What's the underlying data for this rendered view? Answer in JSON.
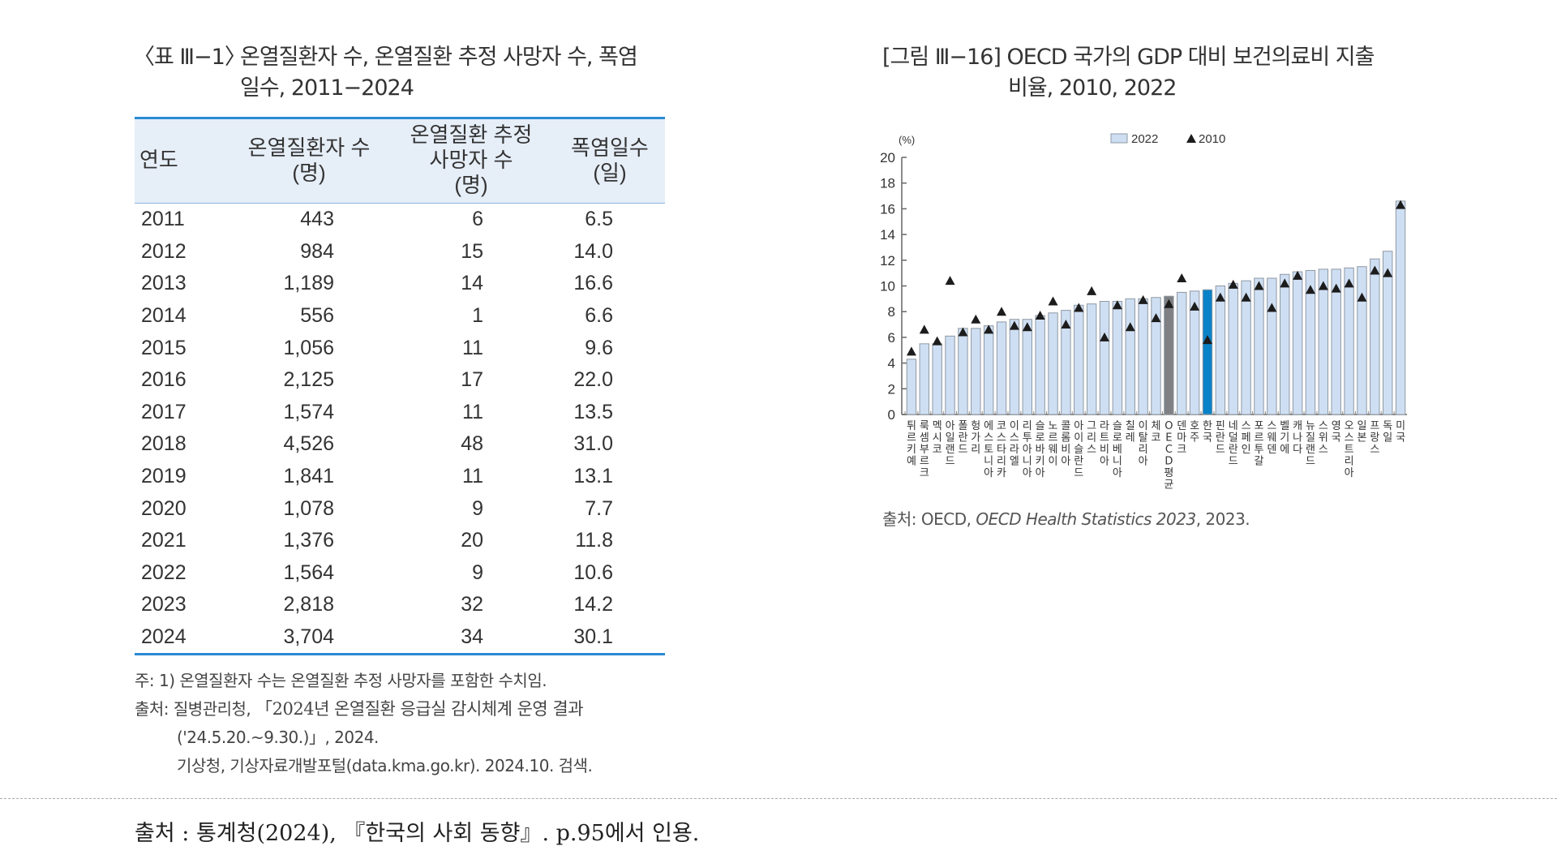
{
  "table": {
    "caption_number": "〈표 Ⅲ−1〉",
    "caption_line1": "온열질환자 수, 온열질환 추정 사망자 수, 폭염",
    "caption_line2": "일수, 2011−2024",
    "headers": [
      [
        "연도"
      ],
      [
        "온열질환자 수",
        "(명)"
      ],
      [
        "온열질환 추정",
        "사망자 수",
        "(명)"
      ],
      [
        "폭염일수",
        "(일)"
      ]
    ],
    "rows": [
      [
        "2011",
        "443",
        "6",
        "6.5"
      ],
      [
        "2012",
        "984",
        "15",
        "14.0"
      ],
      [
        "2013",
        "1,189",
        "14",
        "16.6"
      ],
      [
        "2014",
        "556",
        "1",
        "6.6"
      ],
      [
        "2015",
        "1,056",
        "11",
        "9.6"
      ],
      [
        "2016",
        "2,125",
        "17",
        "22.0"
      ],
      [
        "2017",
        "1,574",
        "11",
        "13.5"
      ],
      [
        "2018",
        "4,526",
        "48",
        "31.0"
      ],
      [
        "2019",
        "1,841",
        "11",
        "13.1"
      ],
      [
        "2020",
        "1,078",
        "9",
        "7.7"
      ],
      [
        "2021",
        "1,376",
        "20",
        "11.8"
      ],
      [
        "2022",
        "1,564",
        "9",
        "10.6"
      ],
      [
        "2023",
        "2,818",
        "32",
        "14.2"
      ],
      [
        "2024",
        "3,704",
        "34",
        "30.1"
      ]
    ],
    "note": "주: 1) 온열질환자 수는 온열질환 추정 사망자를 포함한 수치임.",
    "source_line1_prefix": "출처: 질병관리청, ",
    "source_line1_title": "「2024년 온열질환 응급실 감시체계 운영 결과",
    "source_line2": "('24.5.20.~9.30.)」, 2024.",
    "source_line3": "기상청, 기상자료개발포털(data.kma.go.kr). 2024.10. 검색."
  },
  "figure": {
    "caption_number": "[그림 Ⅲ−16]",
    "caption_line1": "OECD 국가의 GDP 대비 보건의료비 지출",
    "caption_line2": "비율, 2010, 2022",
    "source_prefix": "출처: OECD, ",
    "source_title": "OECD Health Statistics 2023",
    "source_suffix": ", 2023."
  },
  "chart_data": {
    "type": "bar",
    "title": "OECD 국가의 GDP 대비 보건의료비 지출 비율, 2010, 2022",
    "ylabel": "(%)",
    "xlabel": "",
    "ylim": [
      0,
      20
    ],
    "yticks": [
      0,
      2,
      4,
      6,
      8,
      10,
      12,
      14,
      16,
      18,
      20
    ],
    "grid": false,
    "legend_position": "top-center",
    "legend": [
      {
        "name": "2022",
        "marker": "bar"
      },
      {
        "name": "2010",
        "marker": "triangle"
      }
    ],
    "categories": [
      "튀르키예",
      "룩셈부르크",
      "멕시코",
      "아일랜드",
      "폴란드",
      "헝가리",
      "에스토니아",
      "코스타리카",
      "이스라엘",
      "리투아니아",
      "슬로바키아",
      "노르웨이",
      "콜롬비아",
      "아이슬란드",
      "그리스",
      "라트비아",
      "슬로베니아",
      "칠레",
      "이탈리아",
      "체코",
      "OECD 평균",
      "덴마크",
      "호주",
      "한국",
      "핀란드",
      "네덜란드",
      "스페인",
      "포르투갈",
      "스웨덴",
      "벨기에",
      "캐나다",
      "뉴질랜드",
      "스위스",
      "영국",
      "오스트리아",
      "일본",
      "프랑스",
      "독일",
      "미국"
    ],
    "series": [
      {
        "name": "2022",
        "type": "bar",
        "values": [
          4.3,
          5.5,
          5.5,
          6.1,
          6.7,
          6.7,
          6.9,
          7.2,
          7.4,
          7.4,
          7.7,
          7.9,
          8.1,
          8.5,
          8.6,
          8.8,
          8.8,
          9.0,
          9.0,
          9.1,
          9.2,
          9.5,
          9.6,
          9.7,
          10.0,
          10.2,
          10.4,
          10.6,
          10.6,
          10.9,
          11.1,
          11.2,
          11.3,
          11.3,
          11.4,
          11.5,
          12.1,
          12.7,
          16.6
        ]
      },
      {
        "name": "2010",
        "type": "marker",
        "values": [
          4.9,
          6.6,
          5.7,
          10.4,
          6.4,
          7.4,
          6.6,
          8.0,
          6.9,
          6.8,
          7.7,
          8.8,
          7.0,
          8.3,
          9.6,
          6.0,
          8.5,
          6.8,
          8.9,
          7.5,
          8.6,
          10.6,
          8.4,
          5.8,
          9.1,
          10.1,
          9.1,
          10.0,
          8.3,
          10.2,
          10.8,
          9.7,
          10.0,
          9.8,
          10.2,
          9.1,
          11.2,
          11.0,
          16.3
        ]
      }
    ],
    "highlight": {
      "OECD 평균": "#7f8083",
      "한국": "#0a82c8"
    },
    "colors": {
      "bar": "#cfdff3",
      "bar_stroke": "#8f98a3",
      "marker": "#1c1c1c"
    }
  },
  "footer": {
    "citation": "출처 : 통계청(2024), 『한국의 사회 동향』. p.95에서 인용."
  }
}
